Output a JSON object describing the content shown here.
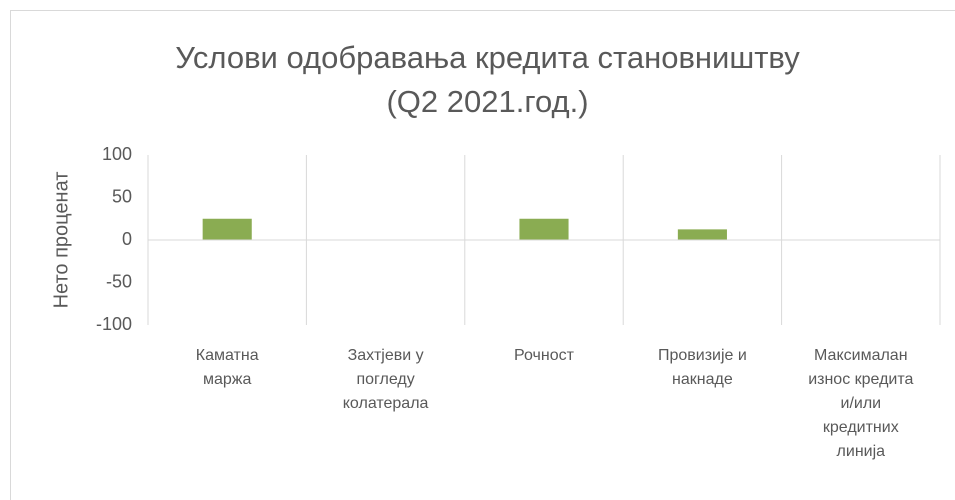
{
  "chart_data": {
    "type": "bar",
    "title": "Услови одобравања кредита становништву\n(Q2 2021.год.)",
    "y_label": "Нето проценат",
    "categories": [
      "Каматна\nмаржа",
      "Захтјеви у\nпогледу\nколатерала",
      "Рочност",
      "Провизије и\nнакнаде",
      "Максималан\nизнос кредита\nи/или\nкредитних\nлинија"
    ],
    "values": [
      25,
      0,
      25,
      12.5,
      0
    ],
    "color": "#8aac52",
    "ylim": [
      -100,
      100
    ],
    "yticks": [
      -100,
      -50,
      0,
      50,
      100
    ],
    "category_separators": true
  }
}
